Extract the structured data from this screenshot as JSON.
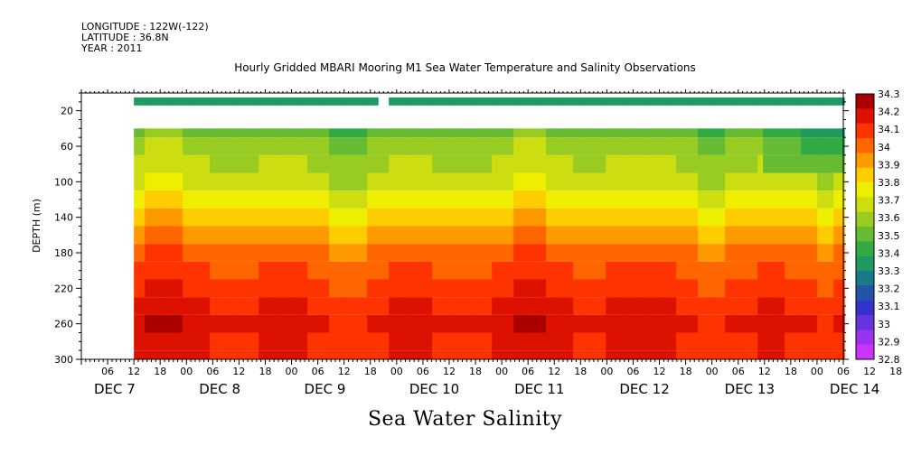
{
  "header": {
    "longitude": "LONGITUDE : 122W(-122)",
    "latitude": "LATITUDE : 36.8N",
    "year": "YEAR : 2011"
  },
  "chart_data": {
    "type": "heatmap",
    "title": "Hourly Gridded MBARI Mooring M1 Sea Water Temperature and Salinity Observations",
    "xlabel": "Sea Water Salinity",
    "ylabel": "DEPTH (m)",
    "x_unit": "hours",
    "hour_ticks": [
      "06",
      "12",
      "18",
      "00",
      "06",
      "12",
      "18",
      "00",
      "06",
      "12",
      "18",
      "00",
      "06",
      "12",
      "18",
      "00",
      "06",
      "12",
      "18",
      "00",
      "06",
      "12",
      "18",
      "00",
      "06",
      "12",
      "18",
      "00",
      "06",
      "12",
      "18",
      "00"
    ],
    "day_labels": [
      "DEC 7",
      "DEC 8",
      "DEC 9",
      "DEC 10",
      "DEC 11",
      "DEC 12",
      "DEC 13",
      "DEC 14"
    ],
    "xlim": [
      "2011-12-07 00:00",
      "2011-12-14 06:00"
    ],
    "data_start": "2011-12-07 12:00",
    "data_gap_x": [
      "2011-12-09 19:00",
      "2011-12-09 21:00"
    ],
    "ylim": [
      300,
      0
    ],
    "yticks": [
      20,
      60,
      100,
      140,
      180,
      220,
      260,
      300
    ],
    "depth_levels": [
      10,
      40,
      60,
      80,
      100,
      120,
      140,
      160,
      180,
      200,
      220,
      240,
      260,
      280,
      300
    ],
    "colorbar_levels": [
      32.8,
      32.9,
      33,
      33.1,
      33.2,
      33.3,
      33.4,
      33.5,
      33.6,
      33.7,
      33.8,
      33.9,
      34,
      34.1,
      34.2,
      34.3
    ],
    "colorbar_labels": [
      "34.3",
      "34.2",
      "34.1",
      "34",
      "33.9",
      "33.8",
      "33.7",
      "33.6",
      "33.5",
      "33.4",
      "33.3",
      "33.2",
      "33.1",
      "33",
      "32.9",
      "32.8"
    ],
    "colors": [
      "#cc33ff",
      "#9933ee",
      "#6633dd",
      "#3333cc",
      "#2255aa",
      "#1a7a8a",
      "#1f9a60",
      "#33aa44",
      "#66bb33",
      "#99cc22",
      "#ccdd11",
      "#eeee00",
      "#ffcc00",
      "#ff9900",
      "#ff6600",
      "#ff3300",
      "#dd1100",
      "#aa0000"
    ],
    "profile": [
      {
        "depth": 10,
        "salinity": 33.25
      },
      {
        "depth": 40,
        "salinity": 33.45
      },
      {
        "depth": 60,
        "salinity": 33.55
      },
      {
        "depth": 80,
        "salinity": 33.6
      },
      {
        "depth": 100,
        "salinity": 33.65
      },
      {
        "depth": 120,
        "salinity": 33.75
      },
      {
        "depth": 140,
        "salinity": 33.85
      },
      {
        "depth": 160,
        "salinity": 33.95
      },
      {
        "depth": 180,
        "salinity": 34.05
      },
      {
        "depth": 200,
        "salinity": 34.1
      },
      {
        "depth": 220,
        "salinity": 34.15
      },
      {
        "depth": 240,
        "salinity": 34.2
      },
      {
        "depth": 260,
        "salinity": 34.25
      },
      {
        "depth": 280,
        "salinity": 34.2
      },
      {
        "depth": 300,
        "salinity": 34.2
      }
    ]
  }
}
